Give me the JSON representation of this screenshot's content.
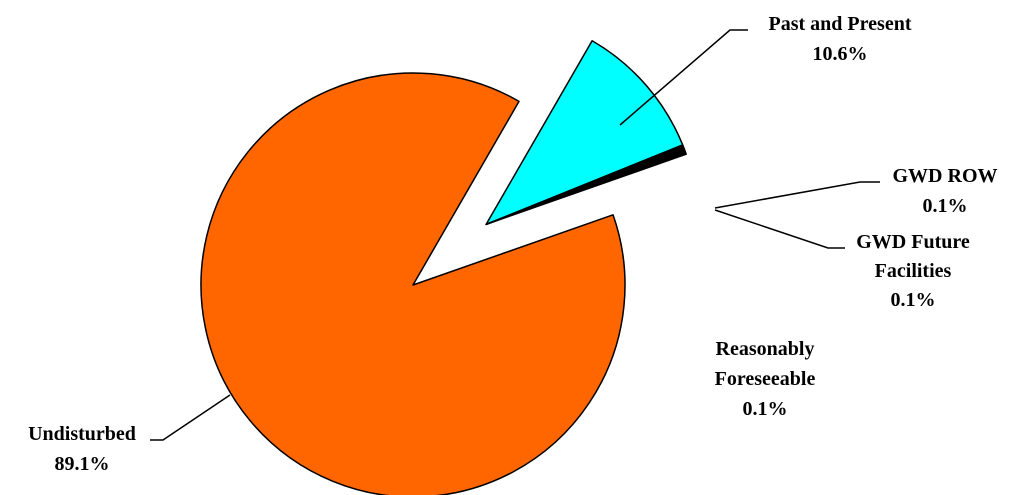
{
  "chart_data": {
    "type": "pie",
    "title": "",
    "slices": [
      {
        "name": "Past and Present",
        "value": 10.6,
        "value_label": "10.6%",
        "color": "#00FFFF",
        "exploded": true
      },
      {
        "name": "GWD ROW",
        "value": 0.1,
        "value_label": "0.1%",
        "color": "#000000",
        "exploded": true
      },
      {
        "name": "GWD Future Facilities",
        "value": 0.1,
        "value_label": "0.1%",
        "color": "#000000",
        "exploded": true
      },
      {
        "name": "Reasonably Foreseeable",
        "value": 0.1,
        "value_label": "0.1%",
        "color": "#000000",
        "exploded": true
      },
      {
        "name": "Undisturbed",
        "value": 89.1,
        "value_label": "89.1%",
        "color": "#FF6600",
        "exploded": false
      }
    ]
  },
  "labels": {
    "past": {
      "line1": "Past and Present",
      "line2": "10.6%"
    },
    "gwd_row": {
      "line1": "GWD ROW",
      "line2": "0.1%"
    },
    "gwd_future": {
      "line1": "GWD Future",
      "line2": "Facilities",
      "line3": "0.1%"
    },
    "reasonably": {
      "line1": "Reasonably",
      "line2": "Foreseeable",
      "line3": "0.1%"
    },
    "undisturbed": {
      "line1": "Undisturbed",
      "line2": "89.1%"
    }
  }
}
